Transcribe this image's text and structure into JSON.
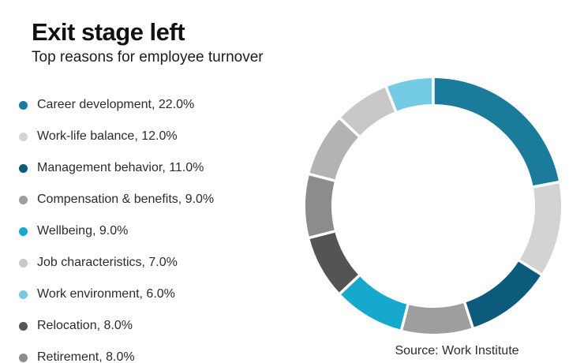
{
  "header": {
    "title": "Exit stage left",
    "subtitle": "Top reasons for employee turnover"
  },
  "legend": {
    "position": "left",
    "items": [
      {
        "text": "Career development, 22.0%",
        "color": "#1a7b9b"
      },
      {
        "text": "Work-life balance, 12.0%",
        "color": "#d3d3d3"
      },
      {
        "text": "Management behavior, 11.0%",
        "color": "#0d5b7c"
      },
      {
        "text": "Compensation & benefits, 9.0%",
        "color": "#9e9e9e"
      },
      {
        "text": "Wellbeing, 9.0%",
        "color": "#17a8ce"
      },
      {
        "text": "Job characteristics, 7.0%",
        "color": "#c8c8c6"
      },
      {
        "text": "Work environment, 6.0%",
        "color": "#74cbe4"
      },
      {
        "text": "Relocation, 8.0%",
        "color": "#545454"
      },
      {
        "text": "Retirement, 8.0%",
        "color": "#8c8c8c"
      }
    ]
  },
  "source": {
    "text": "Source: Work Institute"
  },
  "chart_data": {
    "type": "pie",
    "subtype": "donut",
    "title": "Exit stage left",
    "subtitle": "Top reasons for employee turnover",
    "start_angle_deg": 0,
    "direction": "clockwise",
    "order": "value-descending",
    "legend_position": "left",
    "donut_outer_r": 162,
    "donut_inner_r": 129,
    "segments": [
      {
        "label": "Career development",
        "value": 22.0,
        "color": "#1a7b9b"
      },
      {
        "label": "Work-life balance",
        "value": 12.0,
        "color": "#d3d3d3"
      },
      {
        "label": "Management behavior",
        "value": 11.0,
        "color": "#0d5b7c"
      },
      {
        "label": "Compensation & benefits",
        "value": 9.0,
        "color": "#9e9e9e"
      },
      {
        "label": "Wellbeing",
        "value": 9.0,
        "color": "#17a8ce"
      },
      {
        "label": "Relocation",
        "value": 8.0,
        "color": "#545454"
      },
      {
        "label": "Retirement",
        "value": 8.0,
        "color": "#8c8c8c"
      },
      {
        "label": "",
        "value": 8.0,
        "color": "#b3b3b3"
      },
      {
        "label": "Job characteristics",
        "value": 7.0,
        "color": "#c8c8c6"
      },
      {
        "label": "Work environment",
        "value": 6.0,
        "color": "#74cbe4"
      }
    ]
  }
}
